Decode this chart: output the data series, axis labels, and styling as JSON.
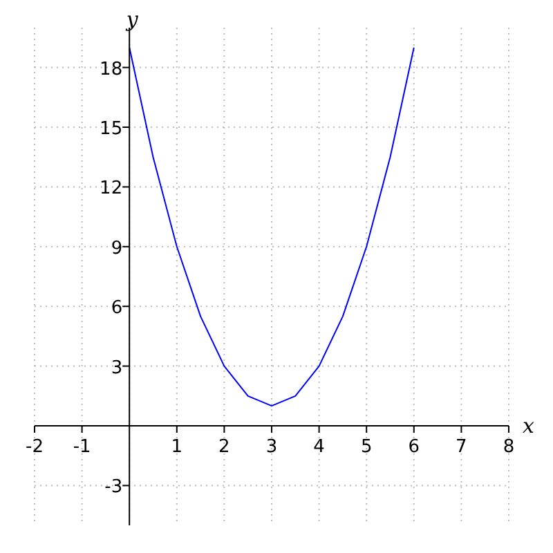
{
  "chart_data": {
    "type": "line",
    "xlabel": "x",
    "ylabel": "y",
    "x": [
      0,
      0.5,
      1,
      1.5,
      2,
      2.5,
      3,
      3.5,
      4,
      4.5,
      5,
      5.5,
      6
    ],
    "series": [
      {
        "color": "#0000ff",
        "values": [
          19,
          13.5,
          9,
          5.5,
          3,
          1.5,
          1,
          1.5,
          3,
          5.5,
          9,
          13.5,
          19
        ]
      }
    ],
    "xlim": [
      -2,
      8
    ],
    "ylim": [
      -5,
      20
    ],
    "xticks": [
      -2,
      -1,
      {
        "value": 0,
        "label": null
      },
      1,
      2,
      3,
      4,
      5,
      6,
      7,
      8
    ],
    "yticks": [
      -3,
      {
        "value": 0,
        "label": null
      },
      3,
      6,
      9,
      12,
      15,
      18
    ],
    "grid": true,
    "marker": "none",
    "line_style": "solid"
  }
}
